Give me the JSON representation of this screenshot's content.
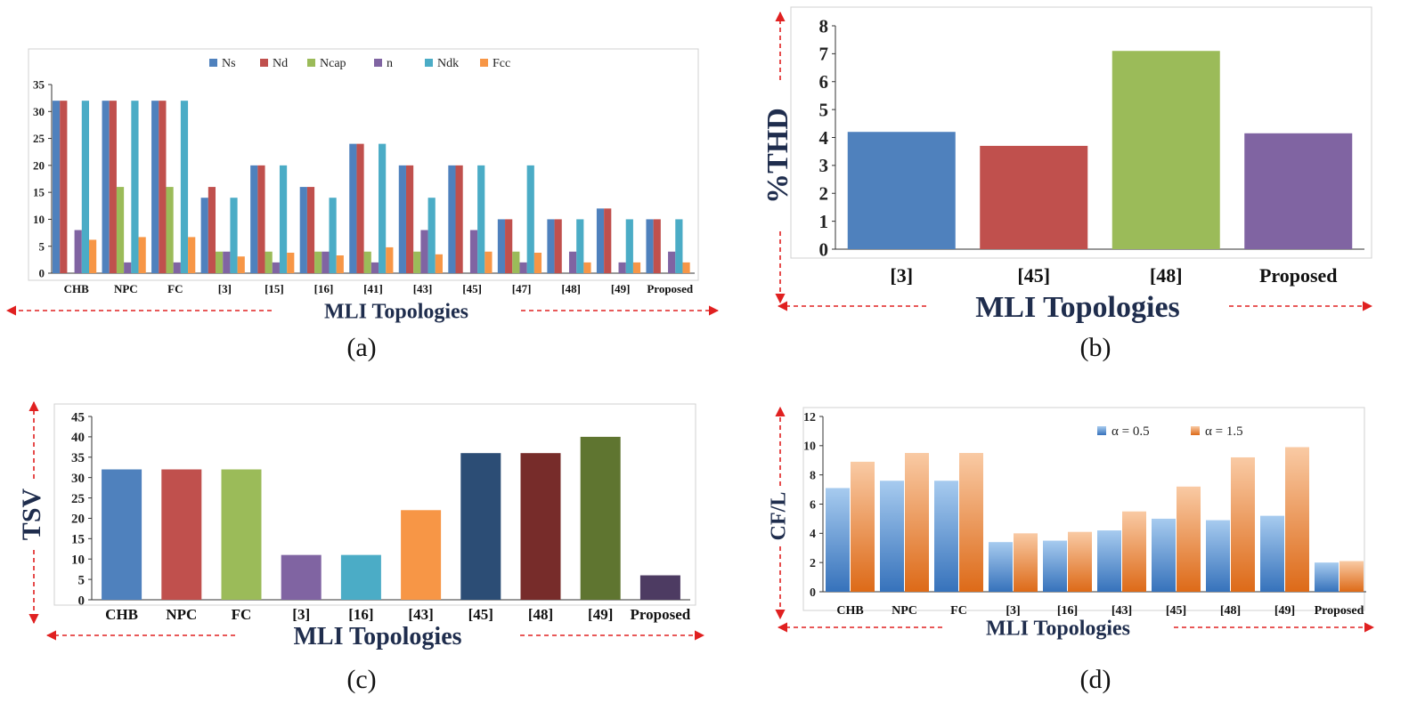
{
  "colors": {
    "ns": "#4f81bd",
    "nd": "#c0504d",
    "ncap": "#9bbb59",
    "n": "#8064a2",
    "ndk": "#4bacc6",
    "fcc": "#f79646",
    "axis": "#333333",
    "arrow": "#e02020",
    "title": "#1f2d4d",
    "tsv": [
      "#4f81bd",
      "#c0504d",
      "#9bbb59",
      "#8064a2",
      "#4bacc6",
      "#f79646",
      "#2c4d75",
      "#772c2a",
      "#5f7530",
      "#4d3b62"
    ],
    "blue_top": "#9cc3ea",
    "blue_bot": "#3a78c0",
    "orange_top": "#f8c49c",
    "orange_bot": "#e0701e"
  },
  "chart_data": [
    {
      "id": "a",
      "type": "bar",
      "caption": "(a)",
      "xlabel": "MLI Topologies",
      "ylabel": "",
      "ylim": [
        0,
        35
      ],
      "yticks": [
        "0",
        "5",
        "10",
        "15",
        "20",
        "25",
        "30",
        "35"
      ],
      "categories": [
        "CHB",
        "NPC",
        "FC",
        "[3]",
        "[15]",
        "[16]",
        "[41]",
        "[43]",
        "[45]",
        "[47]",
        "[48]",
        "[49]",
        "Proposed"
      ],
      "series": [
        {
          "name": "Ns",
          "values": [
            32,
            32,
            32,
            14,
            20,
            16,
            24,
            20,
            20,
            10,
            10,
            12,
            10
          ]
        },
        {
          "name": "Nd",
          "values": [
            32,
            32,
            32,
            16,
            20,
            16,
            24,
            20,
            20,
            10,
            10,
            12,
            10
          ]
        },
        {
          "name": "Ncap",
          "values": [
            0,
            16,
            16,
            4,
            4,
            4,
            4,
            4,
            0,
            4,
            0,
            0,
            0
          ]
        },
        {
          "name": "n",
          "values": [
            8,
            2,
            2,
            4,
            2,
            4,
            2,
            8,
            8,
            2,
            4,
            2,
            4
          ]
        },
        {
          "name": "Ndk",
          "values": [
            32,
            32,
            32,
            14,
            20,
            14,
            24,
            14,
            20,
            20,
            10,
            10,
            10
          ]
        },
        {
          "name": "Fcc",
          "values": [
            6.2,
            6.7,
            6.7,
            3.1,
            3.8,
            3.3,
            4.8,
            3.5,
            4,
            3.8,
            2,
            2,
            2
          ]
        }
      ]
    },
    {
      "id": "b",
      "type": "bar",
      "caption": "(b)",
      "xlabel": "MLI Topologies",
      "ylabel": "%THD",
      "ylim": [
        0,
        8
      ],
      "yticks": [
        "0",
        "1",
        "2",
        "3",
        "4",
        "5",
        "6",
        "7",
        "8"
      ],
      "categories": [
        "[3]",
        "[45]",
        "[48]",
        "Proposed"
      ],
      "values": [
        4.2,
        3.7,
        7.1,
        4.15
      ]
    },
    {
      "id": "c",
      "type": "bar",
      "caption": "(c)",
      "xlabel": "MLI Topologies",
      "ylabel": "TSV",
      "ylim": [
        0,
        45
      ],
      "yticks": [
        "0",
        "5",
        "10",
        "15",
        "20",
        "25",
        "30",
        "35",
        "40",
        "45"
      ],
      "categories": [
        "CHB",
        "NPC",
        "FC",
        "[3]",
        "[16]",
        "[43]",
        "[45]",
        "[48]",
        "[49]",
        "Proposed"
      ],
      "values": [
        32,
        32,
        32,
        11,
        11,
        22,
        36,
        36,
        40,
        6
      ]
    },
    {
      "id": "d",
      "type": "bar",
      "caption": "(d)",
      "xlabel": "MLI Topologies",
      "ylabel": "CF/L",
      "ylim": [
        0,
        12
      ],
      "yticks": [
        "0",
        "2",
        "4",
        "6",
        "8",
        "10",
        "12"
      ],
      "categories": [
        "CHB",
        "NPC",
        "FC",
        "[3]",
        "[16]",
        "[43]",
        "[45]",
        "[48]",
        "[49]",
        "Proposed"
      ],
      "series": [
        {
          "name": "α = 0.5",
          "values": [
            7.1,
            7.6,
            7.6,
            3.4,
            3.5,
            4.2,
            5.0,
            4.9,
            5.2,
            2.0
          ]
        },
        {
          "name": "α = 1.5",
          "values": [
            8.9,
            9.5,
            9.5,
            4.0,
            4.1,
            5.5,
            7.2,
            9.2,
            9.9,
            2.1
          ]
        }
      ]
    }
  ]
}
